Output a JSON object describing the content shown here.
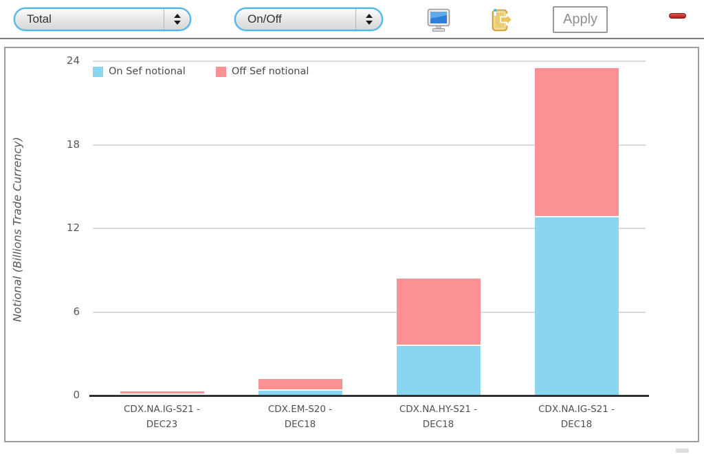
{
  "toolbar": {
    "view_select": {
      "value": "Total"
    },
    "metric_select": {
      "value": "On/Off"
    },
    "apply_label": "Apply",
    "icons": {
      "monitor": "monitor-icon",
      "export": "export-document-icon",
      "remove": "remove-dash-icon"
    }
  },
  "colors": {
    "select_ring": "#4EB4E8",
    "on_sef": "#8AD5EF",
    "off_sef": "#FB9193",
    "gridline": "#D9D9D9",
    "axis": "#2F2F2F",
    "text": "#58585A",
    "panel_border": "#9C9C9C",
    "red_dash": "#A91F19"
  },
  "chart_data": {
    "type": "bar",
    "stacked": true,
    "title": "",
    "xlabel": "",
    "ylabel": "Notional (Billions Trade Currency)",
    "ylim": [
      0,
      24
    ],
    "yticks": [
      0,
      6,
      12,
      18,
      24
    ],
    "grid": true,
    "legend_position": "top-left",
    "categories": [
      "CDX.NA.IG-S21 - DEC23",
      "CDX.EM-S20 - DEC18",
      "CDX.NA.HY-S21 - DEC18",
      "CDX.NA.IG-S21 - DEC18"
    ],
    "series": [
      {
        "name": "On Sef notional",
        "color": "#8AD5EF",
        "values": [
          0.05,
          0.35,
          3.55,
          12.8
        ]
      },
      {
        "name": "Off Sef notional",
        "color": "#FB9193",
        "values": [
          0.15,
          0.75,
          4.75,
          10.6
        ]
      }
    ]
  }
}
